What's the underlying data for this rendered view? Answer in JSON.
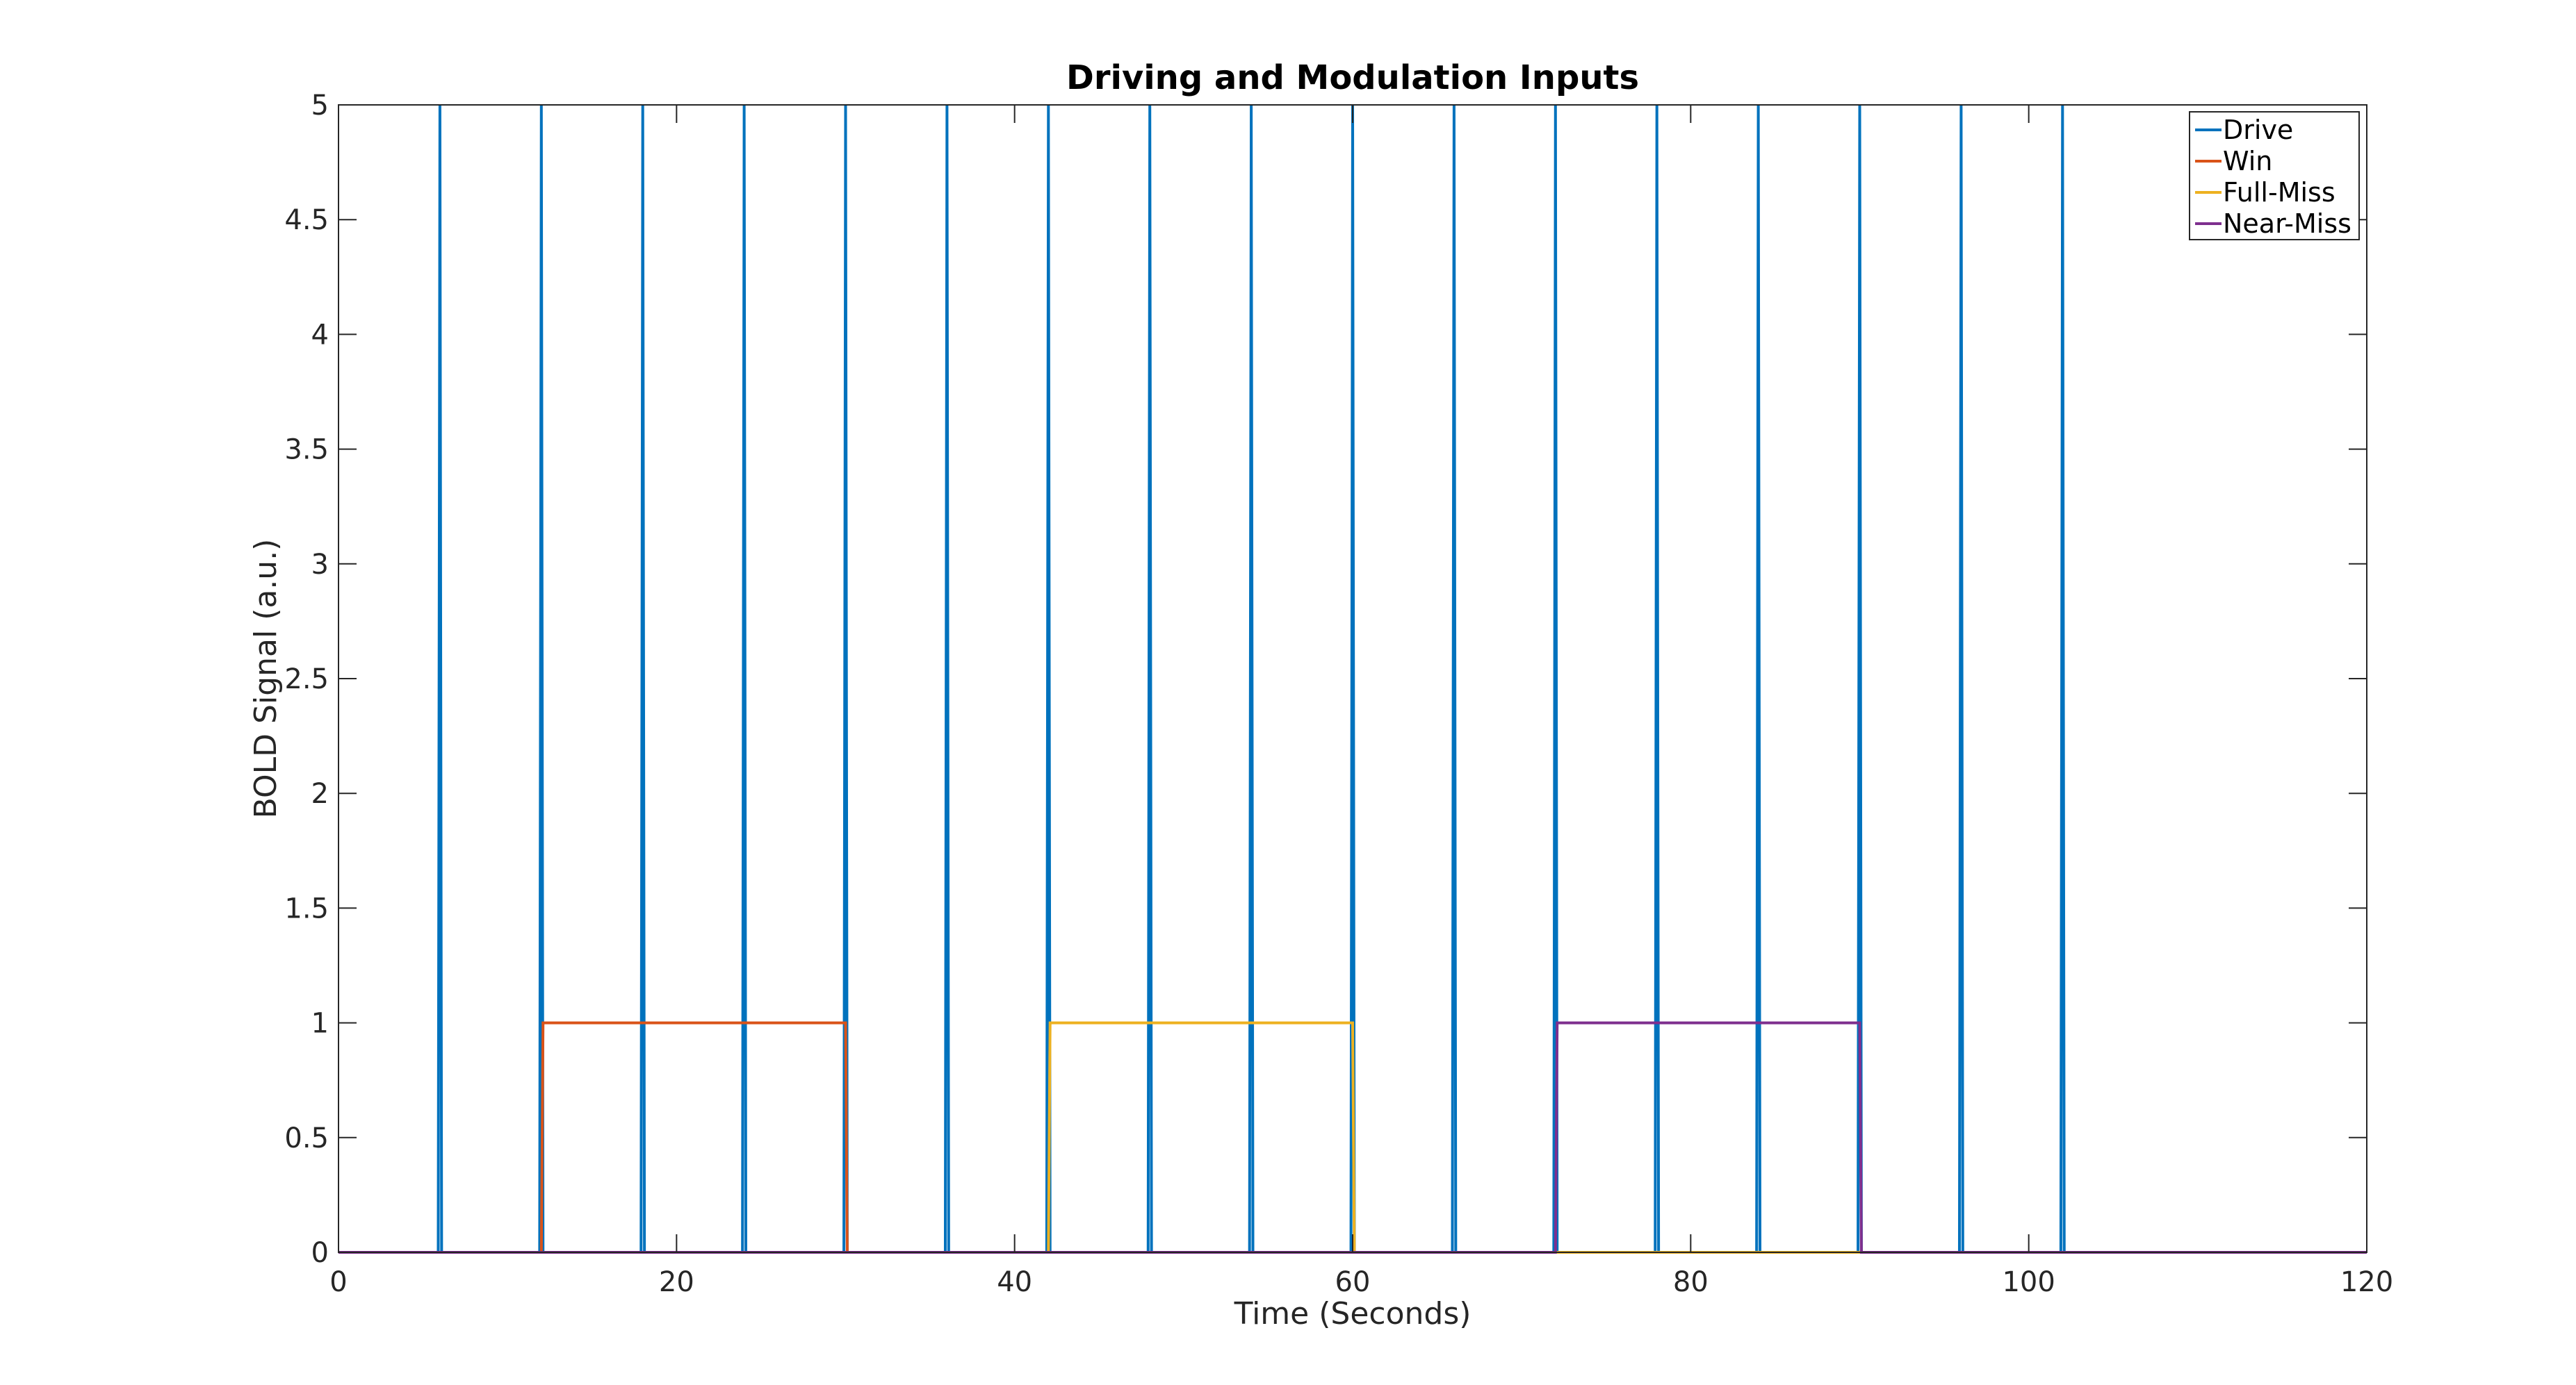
{
  "chart_data": {
    "type": "line",
    "title": "Driving and Modulation Inputs",
    "xlabel": "Time (Seconds)",
    "ylabel": "BOLD Signal (a.u.)",
    "xlim": [
      0,
      120
    ],
    "ylim": [
      0,
      5
    ],
    "xticks": [
      0,
      20,
      40,
      60,
      80,
      100,
      120
    ],
    "yticks": [
      0,
      0.5,
      1,
      1.5,
      2,
      2.5,
      3,
      3.5,
      4,
      4.5,
      5
    ],
    "grid": false,
    "legend_position": "top-right",
    "series": [
      {
        "name": "Drive",
        "color": "#0072BD",
        "x": [
          0,
          5.9,
          6,
          6.1,
          11.9,
          12,
          12.1,
          17.9,
          18,
          18.1,
          23.9,
          24,
          24.1,
          29.9,
          30,
          30.1,
          35.9,
          36,
          36.1,
          41.9,
          42,
          42.1,
          47.9,
          48,
          48.1,
          53.9,
          54,
          54.1,
          59.9,
          60,
          60.1,
          65.9,
          66,
          66.1,
          71.9,
          72,
          72.1,
          77.9,
          78,
          78.1,
          83.9,
          84,
          84.1,
          89.9,
          90,
          90.1,
          95.9,
          96,
          96.1,
          101.9,
          102,
          102.1,
          120
        ],
        "y": [
          0,
          0,
          5,
          0,
          0,
          5,
          0,
          0,
          5,
          0,
          0,
          5,
          0,
          0,
          5,
          0,
          0,
          5,
          0,
          0,
          5,
          0,
          0,
          5,
          0,
          0,
          5,
          0,
          0,
          5,
          0,
          0,
          5,
          0,
          0,
          5,
          0,
          0,
          5,
          0,
          0,
          5,
          0,
          0,
          5,
          0,
          0,
          5,
          0,
          0,
          5,
          0,
          0
        ]
      },
      {
        "name": "Win",
        "color": "#D95319",
        "x": [
          0,
          12,
          12.1,
          30,
          30.1,
          120
        ],
        "y": [
          0,
          0,
          1,
          1,
          0,
          0
        ]
      },
      {
        "name": "Full-Miss",
        "color": "#EDB120",
        "x": [
          0,
          42,
          42.1,
          60,
          60.1,
          120
        ],
        "y": [
          0,
          0,
          1,
          1,
          0,
          0
        ]
      },
      {
        "name": "Near-Miss",
        "color": "#7E2F8E",
        "x": [
          0,
          72,
          72.1,
          90,
          90.1,
          120
        ],
        "y": [
          0,
          0,
          1,
          1,
          0,
          0
        ]
      }
    ]
  }
}
